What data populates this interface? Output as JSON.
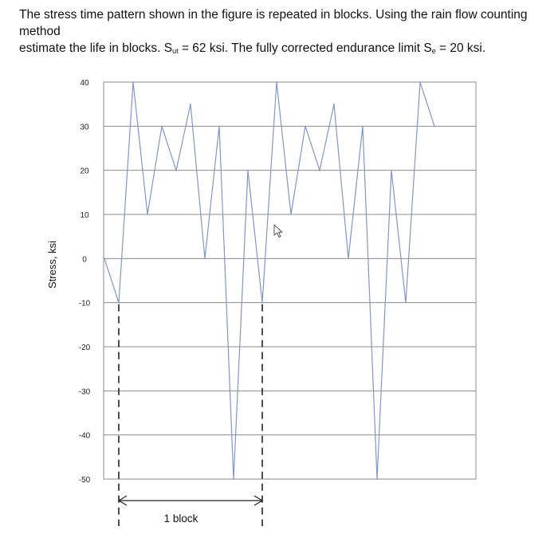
{
  "problem": {
    "line1": "The stress time pattern shown in the figure is repeated in blocks. Using the rain flow counting method",
    "line2_before_sut": "estimate the life in blocks. S",
    "sut_sub": "ut",
    "line2_between": " = 62 ksi. The fully corrected endurance limit S",
    "se_sub": "e",
    "line2_after": " = 20 ksi."
  },
  "chart_data": {
    "type": "line",
    "ylabel": "Stress, ksi",
    "xlabel": "",
    "title": "",
    "ylim": [
      -50,
      40
    ],
    "yticks": [
      40,
      30,
      20,
      10,
      0,
      -10,
      -20,
      -30,
      -40,
      -50
    ],
    "grid": true,
    "series": [
      {
        "values": [
          0,
          -10,
          40,
          10,
          30,
          20,
          35,
          0,
          30,
          -50,
          20,
          -10,
          40,
          10,
          30,
          20,
          35,
          0,
          30,
          -50,
          20,
          -10,
          40,
          30
        ]
      }
    ],
    "annotations": [
      {
        "text": "1 block"
      }
    ]
  },
  "colors": {
    "line": "#7f96c6",
    "grid": "#8c8c8c",
    "frame": "#8c8c8c",
    "dash": "#222222",
    "text": "#111111"
  },
  "icons": [
    "cursor-arrow-icon"
  ]
}
